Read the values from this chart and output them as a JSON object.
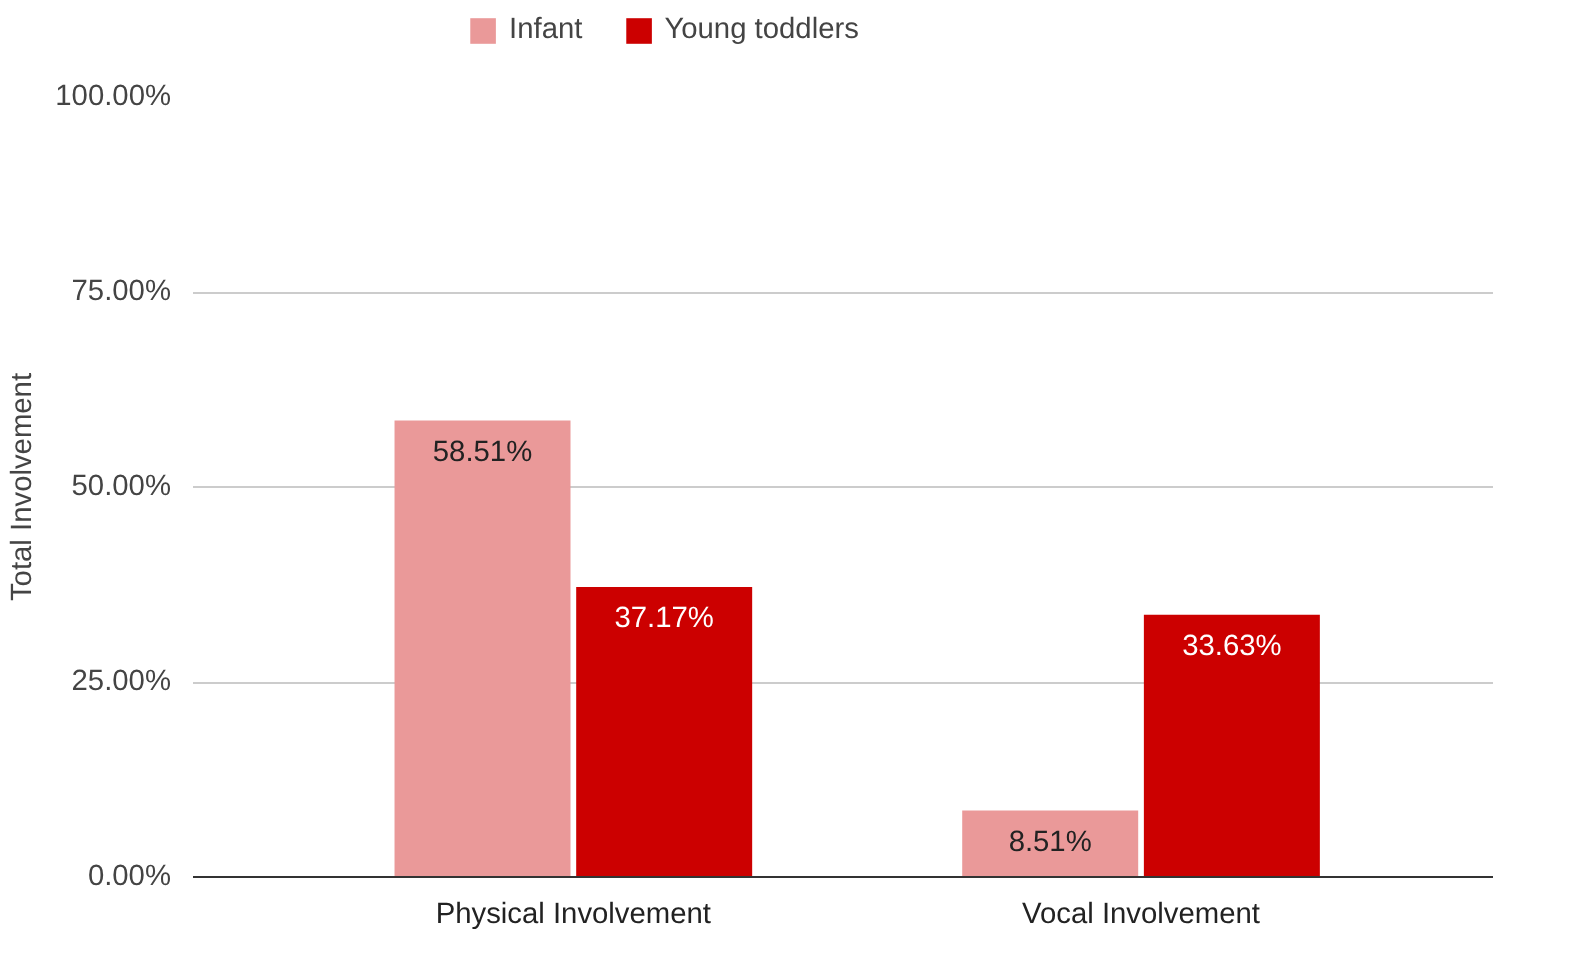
{
  "chart_data": {
    "type": "bar",
    "ylabel": "Total Involvement",
    "categories": [
      "Physical Involvement",
      "Vocal Involvement"
    ],
    "series": [
      {
        "name": "Infant",
        "color": "#ea9999",
        "values": [
          58.51,
          8.51
        ],
        "value_labels": [
          "58.51%",
          "8.51%"
        ]
      },
      {
        "name": "Young toddlers",
        "color": "#cc0000",
        "values": [
          37.17,
          33.63
        ],
        "value_labels": [
          "37.17%",
          "33.63%"
        ]
      }
    ],
    "ylim": [
      0,
      100
    ],
    "yticks": [
      {
        "value": 0,
        "label": "0.00%"
      },
      {
        "value": 25,
        "label": "25.00%"
      },
      {
        "value": 50,
        "label": "50.00%"
      },
      {
        "value": 75,
        "label": "75.00%"
      },
      {
        "value": 100,
        "label": "100.00%"
      }
    ],
    "grid": "y",
    "legend": "top"
  }
}
